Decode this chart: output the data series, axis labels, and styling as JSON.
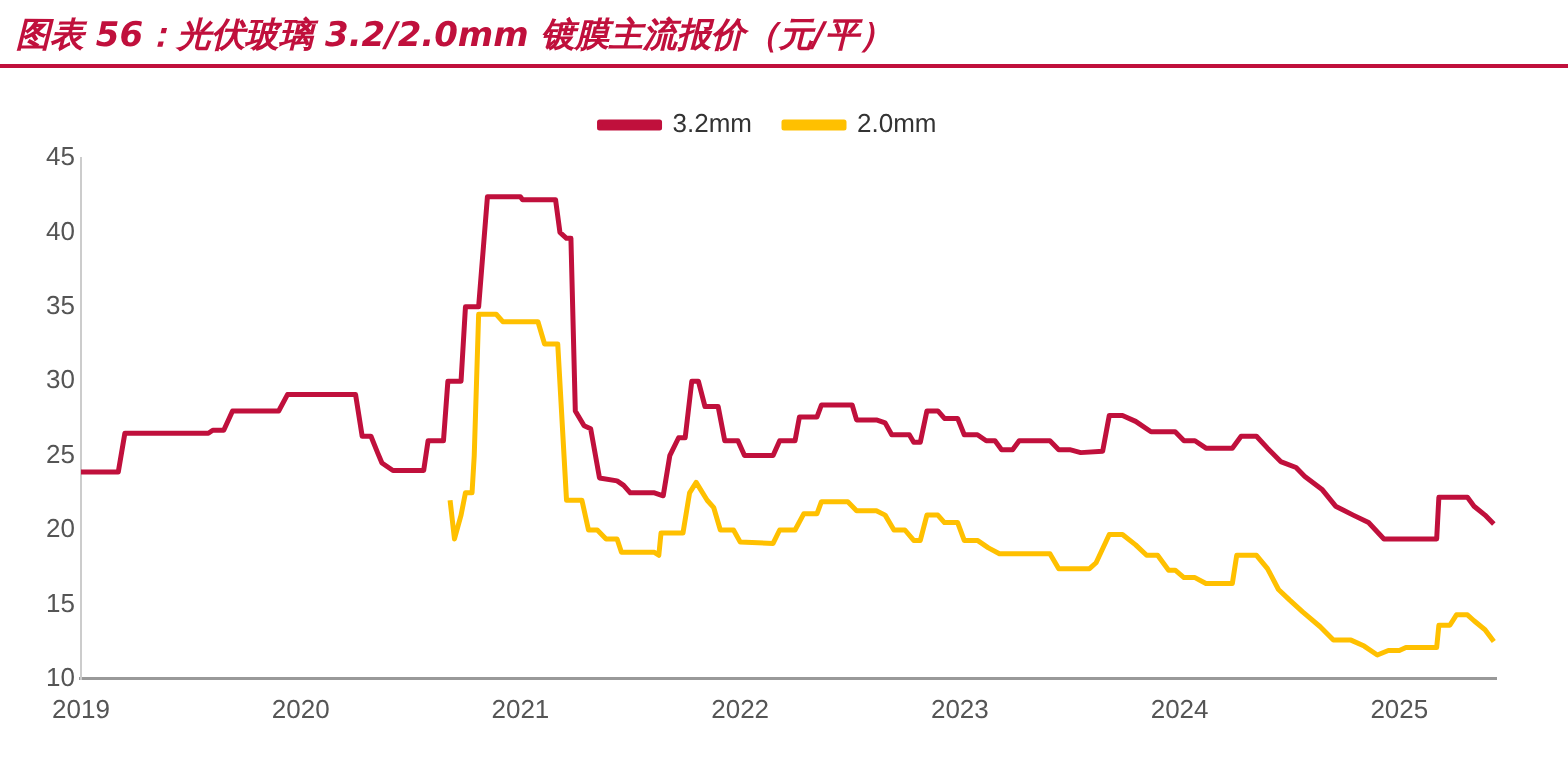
{
  "chart_data": {
    "type": "line",
    "title": "图表 56：光伏玻璃 3.2/2.0mm 镀膜主流报价（元/平）",
    "xlim": [
      2019,
      2025.44
    ],
    "xticks": [
      2019,
      2020,
      2021,
      2022,
      2023,
      2024,
      2025
    ],
    "ylim": [
      10,
      45
    ],
    "yticks": [
      10,
      15,
      20,
      25,
      30,
      35,
      40,
      45
    ],
    "grid": false,
    "legend": "top",
    "marker": "none",
    "line_style": "solid",
    "series": [
      {
        "name": "3.2mm",
        "color": "#c0103c",
        "x": [
          2019.0,
          2019.17,
          2019.2,
          2019.58,
          2019.6,
          2019.65,
          2019.69,
          2019.9,
          2019.94,
          2020.25,
          2020.28,
          2020.32,
          2020.35,
          2020.37,
          2020.42,
          2020.56,
          2020.58,
          2020.65,
          2020.67,
          2020.73,
          2020.75,
          2020.81,
          2020.85,
          2021.0,
          2021.01,
          2021.16,
          2021.18,
          2021.21,
          2021.23,
          2021.25,
          2021.29,
          2021.32,
          2021.36,
          2021.44,
          2021.47,
          2021.5,
          2021.61,
          2021.65,
          2021.68,
          2021.72,
          2021.75,
          2021.78,
          2021.81,
          2021.84,
          2021.9,
          2021.93,
          2021.99,
          2022.02,
          2022.15,
          2022.18,
          2022.25,
          2022.27,
          2022.35,
          2022.37,
          2022.51,
          2022.53,
          2022.62,
          2022.66,
          2022.69,
          2022.77,
          2022.79,
          2022.82,
          2022.85,
          2022.9,
          2022.93,
          2022.99,
          2023.02,
          2023.08,
          2023.12,
          2023.16,
          2023.19,
          2023.24,
          2023.27,
          2023.41,
          2023.45,
          2023.5,
          2023.55,
          2023.65,
          2023.68,
          2023.74,
          2023.8,
          2023.87,
          2023.98,
          2024.02,
          2024.07,
          2024.12,
          2024.24,
          2024.28,
          2024.35,
          2024.4,
          2024.46,
          2024.53,
          2024.57,
          2024.65,
          2024.71,
          2024.79,
          2024.86,
          2024.93,
          2025.17,
          2025.18,
          2025.31,
          2025.34,
          2025.39,
          2025.43
        ],
        "values": [
          23.9,
          23.9,
          26.5,
          26.5,
          26.7,
          26.7,
          28.0,
          28.0,
          29.1,
          29.1,
          26.3,
          26.3,
          25.2,
          24.5,
          24.0,
          24.0,
          26.0,
          26.0,
          30.0,
          30.0,
          35.0,
          35.0,
          42.4,
          42.4,
          42.2,
          42.2,
          40.0,
          39.6,
          39.6,
          28.0,
          27.0,
          26.8,
          23.5,
          23.3,
          23.0,
          22.5,
          22.5,
          22.3,
          25.0,
          26.2,
          26.2,
          30.0,
          30.0,
          28.3,
          28.3,
          26.0,
          26.0,
          25.0,
          25.0,
          26.0,
          26.0,
          27.6,
          27.6,
          28.4,
          28.4,
          27.4,
          27.4,
          27.2,
          26.4,
          26.4,
          25.9,
          25.9,
          28.0,
          28.0,
          27.5,
          27.5,
          26.4,
          26.4,
          26.0,
          26.0,
          25.4,
          25.4,
          26.0,
          26.0,
          25.4,
          25.4,
          25.2,
          25.3,
          27.7,
          27.7,
          27.3,
          26.6,
          26.6,
          26.0,
          26.0,
          25.5,
          25.5,
          26.3,
          26.3,
          25.5,
          24.6,
          24.2,
          23.6,
          22.7,
          21.6,
          21.0,
          20.5,
          19.4,
          19.4,
          22.2,
          22.2,
          21.6,
          21.0,
          20.4
        ]
      },
      {
        "name": "2.0mm",
        "color": "#ffc000",
        "x": [
          2020.68,
          2020.7,
          2020.73,
          2020.75,
          2020.78,
          2020.79,
          2020.81,
          2020.89,
          2020.92,
          2021.08,
          2021.11,
          2021.17,
          2021.21,
          2021.28,
          2021.31,
          2021.35,
          2021.39,
          2021.44,
          2021.46,
          2021.61,
          2021.63,
          2021.64,
          2021.74,
          2021.77,
          2021.8,
          2021.85,
          2021.88,
          2021.91,
          2021.97,
          2022.0,
          2022.15,
          2022.18,
          2022.25,
          2022.29,
          2022.35,
          2022.37,
          2022.49,
          2022.53,
          2022.62,
          2022.66,
          2022.7,
          2022.75,
          2022.79,
          2022.82,
          2022.85,
          2022.9,
          2022.93,
          2022.99,
          2023.02,
          2023.08,
          2023.13,
          2023.18,
          2023.41,
          2023.45,
          2023.59,
          2023.62,
          2023.68,
          2023.74,
          2023.8,
          2023.85,
          2023.9,
          2023.95,
          2023.98,
          2024.02,
          2024.07,
          2024.12,
          2024.24,
          2024.26,
          2024.35,
          2024.4,
          2024.45,
          2024.5,
          2024.56,
          2024.64,
          2024.7,
          2024.78,
          2024.84,
          2024.9,
          2024.95,
          2025.0,
          2025.03,
          2025.17,
          2025.18,
          2025.23,
          2025.26,
          2025.31,
          2025.34,
          2025.39,
          2025.43
        ],
        "values": [
          22.0,
          19.4,
          21.0,
          22.5,
          22.5,
          25.0,
          34.5,
          34.5,
          34.0,
          34.0,
          32.5,
          32.5,
          22.0,
          22.0,
          20.0,
          20.0,
          19.4,
          19.4,
          18.5,
          18.5,
          18.3,
          19.8,
          19.8,
          22.5,
          23.2,
          22.0,
          21.5,
          20.0,
          20.0,
          19.2,
          19.1,
          20.0,
          20.0,
          21.1,
          21.1,
          21.9,
          21.9,
          21.3,
          21.3,
          21.0,
          20.0,
          20.0,
          19.3,
          19.3,
          21.0,
          21.0,
          20.5,
          20.5,
          19.3,
          19.3,
          18.8,
          18.4,
          18.4,
          17.4,
          17.4,
          17.8,
          19.7,
          19.7,
          19.0,
          18.3,
          18.3,
          17.3,
          17.3,
          16.8,
          16.8,
          16.4,
          16.4,
          18.3,
          18.3,
          17.4,
          16.0,
          15.3,
          14.5,
          13.5,
          12.6,
          12.6,
          12.2,
          11.6,
          11.9,
          11.9,
          12.1,
          12.1,
          13.6,
          13.6,
          14.3,
          14.3,
          13.9,
          13.3,
          12.5
        ]
      }
    ]
  }
}
